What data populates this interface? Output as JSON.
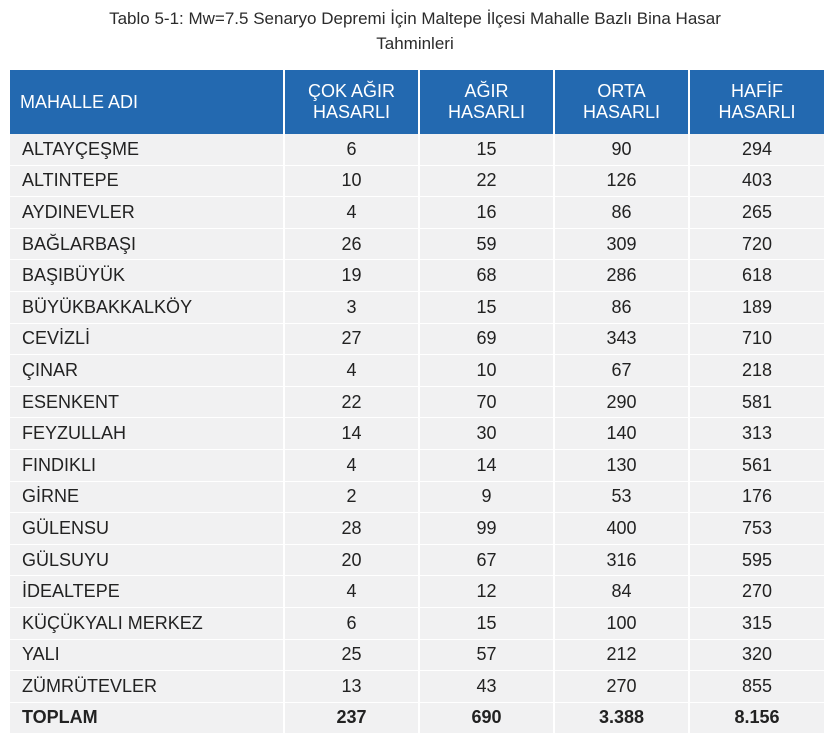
{
  "caption": {
    "line1": "Tablo 5-1: Mw=7.5 Senaryo Depremi İçin Maltepe İlçesi Mahalle Bazlı Bina Hasar",
    "line2": "Tahminleri"
  },
  "headers": [
    [
      "MAHALLE ADI"
    ],
    [
      "ÇOK AĞIR",
      "HASARLI"
    ],
    [
      "AĞIR",
      "HASARLI"
    ],
    [
      "ORTA",
      "HASARLI"
    ],
    [
      "HAFİF",
      "HASARLI"
    ]
  ],
  "rows": [
    [
      "ALTAYÇEŞME",
      "6",
      "15",
      "90",
      "294"
    ],
    [
      "ALTINTEPE",
      "10",
      "22",
      "126",
      "403"
    ],
    [
      "AYDINEVLER",
      "4",
      "16",
      "86",
      "265"
    ],
    [
      "BAĞLARBAŞI",
      "26",
      "59",
      "309",
      "720"
    ],
    [
      "BAŞIBÜYÜK",
      "19",
      "68",
      "286",
      "618"
    ],
    [
      "BÜYÜKBAKKALKÖY",
      "3",
      "15",
      "86",
      "189"
    ],
    [
      "CEVİZLİ",
      "27",
      "69",
      "343",
      "710"
    ],
    [
      "ÇINAR",
      "4",
      "10",
      "67",
      "218"
    ],
    [
      "ESENKENT",
      "22",
      "70",
      "290",
      "581"
    ],
    [
      "FEYZULLAH",
      "14",
      "30",
      "140",
      "313"
    ],
    [
      "FINDIKLI",
      "4",
      "14",
      "130",
      "561"
    ],
    [
      "GİRNE",
      "2",
      "9",
      "53",
      "176"
    ],
    [
      "GÜLENSU",
      "28",
      "99",
      "400",
      "753"
    ],
    [
      "GÜLSUYU",
      "20",
      "67",
      "316",
      "595"
    ],
    [
      "İDEALTEPE",
      "4",
      "12",
      "84",
      "270"
    ],
    [
      "KÜÇÜKYALI MERKEZ",
      "6",
      "15",
      "100",
      "315"
    ],
    [
      "YALI",
      "25",
      "57",
      "212",
      "320"
    ],
    [
      "ZÜMRÜTEVLER",
      "13",
      "43",
      "270",
      "855"
    ]
  ],
  "total": [
    "TOPLAM",
    "237",
    "690",
    "3.388",
    "8.156"
  ]
}
